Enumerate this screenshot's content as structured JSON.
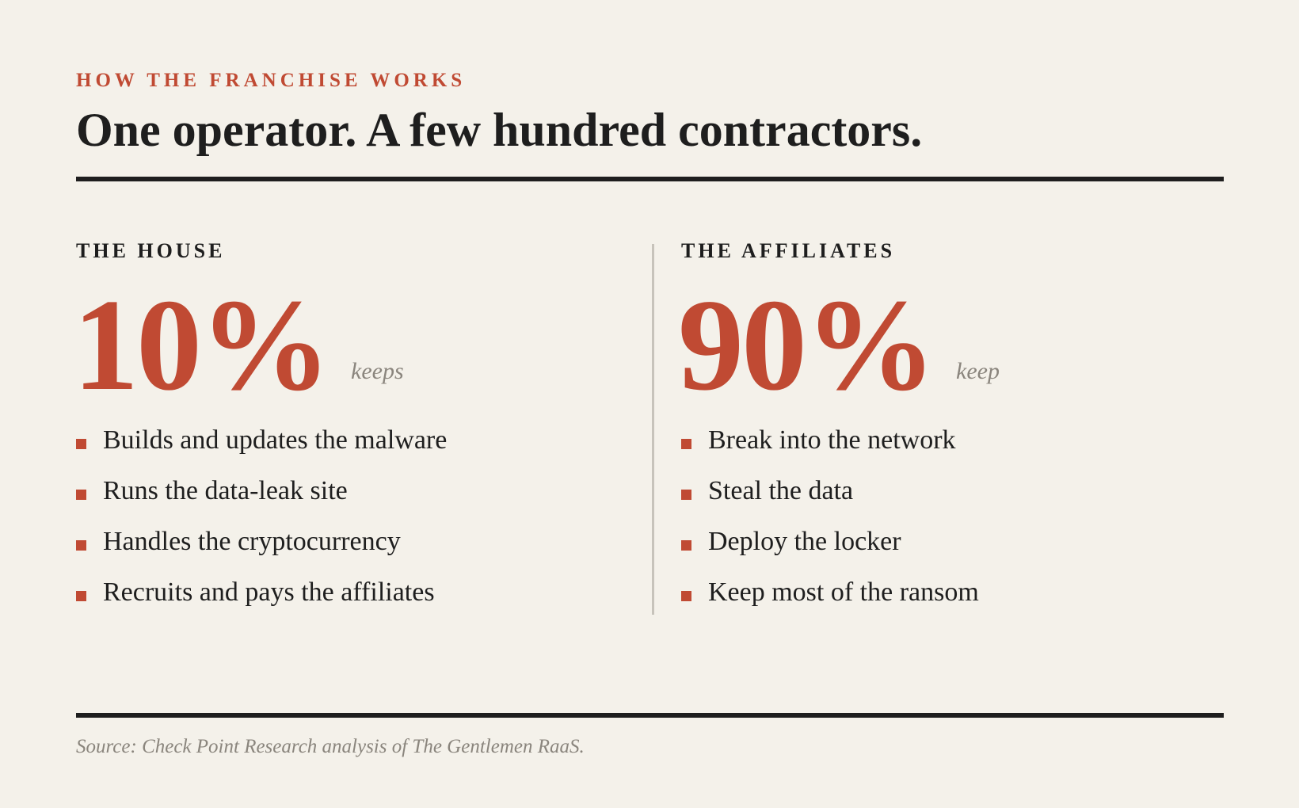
{
  "header": {
    "kicker": "HOW THE FRANCHISE WORKS",
    "title": "One operator. A few hundred contractors."
  },
  "columns": [
    {
      "heading": "THE HOUSE",
      "figure": "10%",
      "figure_note": "keeps",
      "items": [
        "Builds and updates the malware",
        "Runs the data-leak site",
        "Handles the cryptocurrency",
        "Recruits and pays the affiliates"
      ]
    },
    {
      "heading": "THE AFFILIATES",
      "figure": "90%",
      "figure_note": "keep",
      "items": [
        "Break into the network",
        "Steal the data",
        "Deploy the locker",
        "Keep most of the ransom"
      ]
    }
  ],
  "footer": {
    "source": "Source: Check Point Research analysis of The Gentlemen RaaS."
  }
}
